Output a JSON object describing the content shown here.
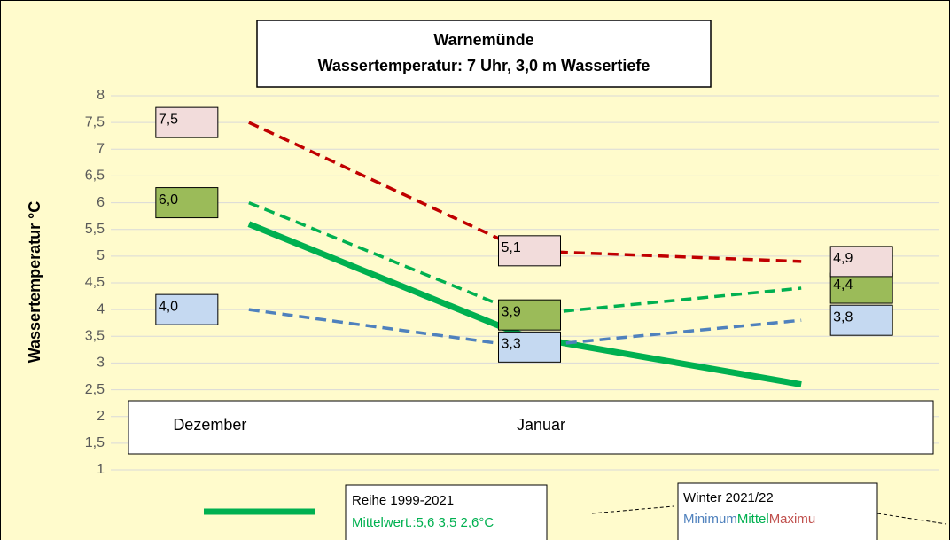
{
  "chart_data": {
    "type": "line",
    "title": "Warnemünde",
    "subtitle": "Wassertemperatur: 7 Uhr, 3,0 m Wassertiefe",
    "y_label": "Wassertemperatur  °C",
    "categories": [
      "Dezember",
      "Januar",
      null
    ],
    "ylim": [
      1,
      8
    ],
    "yticks": [
      1,
      {
        "value": 1.5,
        "label": "1,5"
      },
      2,
      {
        "value": 2.5,
        "label": "2,5"
      },
      3,
      {
        "value": 3.5,
        "label": "3,5"
      },
      4,
      {
        "value": 4.5,
        "label": "4,5"
      },
      5,
      {
        "value": 5.5,
        "label": "5,5"
      },
      6,
      {
        "value": 6.5,
        "label": "6,5"
      },
      7,
      {
        "value": 7.5,
        "label": "7,5"
      },
      8
    ],
    "grid": true,
    "legend_note": "Mittelwert.:5,6  3,5  2,6°C",
    "legend_title": "Winter 2021/22",
    "series": [
      {
        "name": "Reihe 1999-2021",
        "color": "#00b050",
        "style": "solid",
        "values": [
          5.6,
          3.5,
          2.6
        ]
      },
      {
        "name": "Minimum",
        "color": "#4f81bd",
        "style": "dashed",
        "label_fill": "#c5d9f1",
        "values": [
          4.0,
          3.3,
          3.8
        ],
        "value_labels": [
          "4,0",
          "3,3",
          "3,8"
        ]
      },
      {
        "name": "Mittel",
        "color": "#00b050",
        "style": "dashed",
        "label_fill": "#9bbb59",
        "values": [
          6.0,
          3.9,
          4.4
        ],
        "value_labels": [
          "6,0",
          "3,9",
          "4,4"
        ]
      },
      {
        "name": "Maximu",
        "color": "#c00000",
        "style": "dashed",
        "label_fill": "#f2dcdb",
        "values": [
          7.5,
          5.1,
          4.9
        ],
        "value_labels": [
          "7,5",
          "5,1",
          "4,9"
        ]
      }
    ]
  }
}
